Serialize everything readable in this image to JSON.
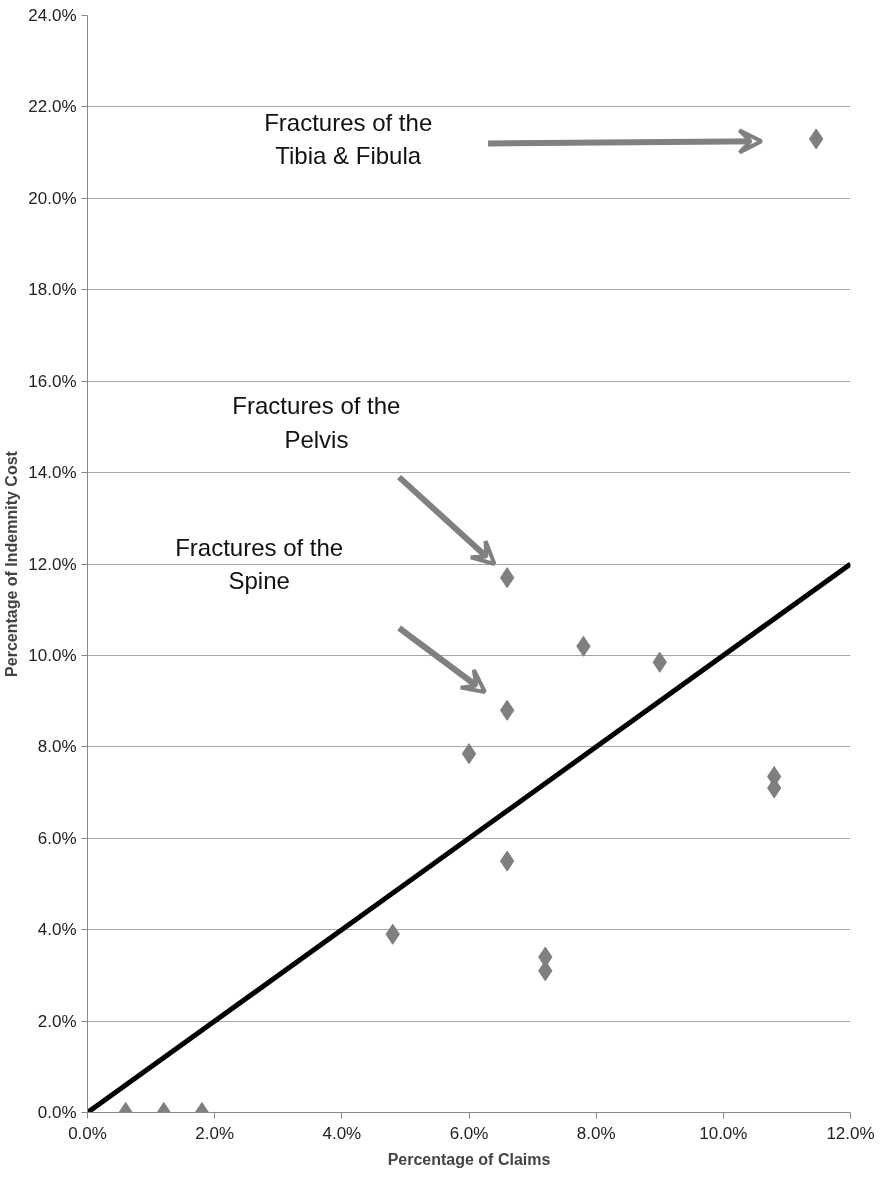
{
  "chart_data": {
    "type": "scatter",
    "xlabel": "Percentage of Claims",
    "ylabel": "Percentage of Indemnity Cost",
    "xlim": [
      0,
      12
    ],
    "ylim": [
      0,
      24
    ],
    "xticks": [
      {
        "value": 0,
        "label": "0.0%"
      },
      {
        "value": 2,
        "label": "2.0%"
      },
      {
        "value": 4,
        "label": "4.0%"
      },
      {
        "value": 6,
        "label": "6.0%"
      },
      {
        "value": 8,
        "label": "8.0%"
      },
      {
        "value": 10,
        "label": "10.0%"
      },
      {
        "value": 12,
        "label": "12.0%"
      }
    ],
    "yticks": [
      {
        "value": 0,
        "label": "0.0%"
      },
      {
        "value": 2,
        "label": "2.0%"
      },
      {
        "value": 4,
        "label": "4.0%"
      },
      {
        "value": 6,
        "label": "6.0%"
      },
      {
        "value": 8,
        "label": "8.0%"
      },
      {
        "value": 10,
        "label": "10.0%"
      },
      {
        "value": 12,
        "label": "12.0%"
      },
      {
        "value": 14,
        "label": "14.0%"
      },
      {
        "value": 16,
        "label": "16.0%"
      },
      {
        "value": 18,
        "label": "18.0%"
      },
      {
        "value": 20,
        "label": "20.0%"
      },
      {
        "value": 22,
        "label": "22.0%"
      },
      {
        "value": 24,
        "label": "24.0%"
      }
    ],
    "grid": "y",
    "series": [
      {
        "type": "scatter",
        "marker": "diamond",
        "color": "#7f7f7f",
        "x": [
          0.6,
          1.2,
          1.8,
          4.8,
          6.0,
          6.6,
          6.6,
          6.6,
          7.2,
          7.2,
          7.8,
          9.0,
          10.8,
          10.8,
          11.46
        ],
        "values": [
          0,
          0,
          0,
          3.9,
          7.85,
          5.5,
          8.8,
          11.7,
          3.4,
          3.1,
          10.2,
          9.85,
          7.35,
          7.1,
          21.3
        ]
      },
      {
        "type": "line",
        "color": "#000000",
        "x": [
          0,
          12
        ],
        "values": [
          0,
          12
        ]
      }
    ],
    "annotations": [
      "Fractures of the\nTibia & Fibula",
      "Fractures of the\nPelvis",
      "Fractures of the\nSpine"
    ]
  }
}
